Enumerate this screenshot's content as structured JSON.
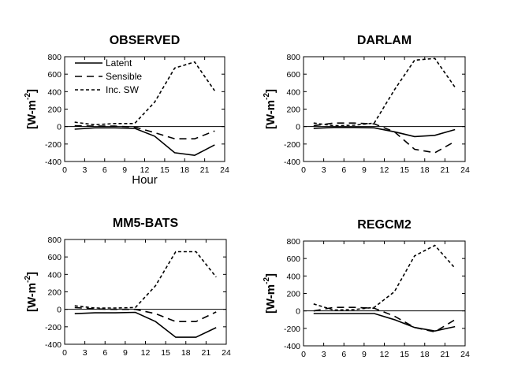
{
  "chart_data": [
    {
      "type": "line",
      "title": "OBSERVED",
      "xlabel": "Hour",
      "ylabel": "[W-m",
      "ylabel_exp": "-2",
      "ylabel_close": "]",
      "xlim": [
        0,
        24
      ],
      "ylim": [
        -400,
        800
      ],
      "x_ticks": [
        "0",
        "3",
        "6",
        "9",
        "12",
        "15",
        "18",
        "21",
        "24"
      ],
      "y_ticks": [
        "800",
        "600",
        "400",
        "200",
        "0",
        "-200",
        "-400"
      ],
      "zero_line": true,
      "legend_position": "top-left",
      "series": [
        {
          "name": "Latent",
          "style": "solid",
          "x": [
            1.5,
            4.5,
            7.5,
            10.5,
            13.5,
            16.5,
            19.5,
            22.5
          ],
          "y": [
            -30,
            -15,
            -15,
            -20,
            -110,
            -300,
            -330,
            -210
          ]
        },
        {
          "name": "Sensible",
          "style": "long-dash",
          "x": [
            1.5,
            4.5,
            7.5,
            10.5,
            13.5,
            16.5,
            19.5,
            22.5
          ],
          "y": [
            10,
            5,
            5,
            -5,
            -70,
            -140,
            -140,
            -50
          ]
        },
        {
          "name": "Inc. SW",
          "style": "short-dash",
          "x": [
            1.5,
            4.5,
            7.5,
            10.5,
            13.5,
            16.5,
            19.5,
            22.5
          ],
          "y": [
            50,
            20,
            35,
            35,
            280,
            670,
            740,
            410
          ]
        }
      ]
    },
    {
      "type": "line",
      "title": "DARLAM",
      "xlabel": "",
      "ylabel": "[W-m",
      "ylabel_exp": "-2",
      "ylabel_close": "]",
      "xlim": [
        0,
        24
      ],
      "ylim": [
        -400,
        800
      ],
      "x_ticks": [
        "0",
        "3",
        "6",
        "9",
        "12",
        "15",
        "18",
        "21",
        "24"
      ],
      "y_ticks": [
        "800",
        "600",
        "400",
        "200",
        "0",
        "-200",
        "-400"
      ],
      "zero_line": true,
      "series": [
        {
          "style": "solid",
          "x": [
            1.5,
            4.5,
            7.5,
            10.5,
            13.5,
            16.5,
            19.5,
            22.5
          ],
          "y": [
            -20,
            -10,
            -10,
            -15,
            -60,
            -115,
            -100,
            -35
          ]
        },
        {
          "style": "long-dash",
          "x": [
            1.5,
            4.5,
            7.5,
            10.5,
            13.5,
            16.5,
            19.5,
            22.5
          ],
          "y": [
            10,
            40,
            40,
            30,
            -60,
            -260,
            -300,
            -170
          ]
        },
        {
          "style": "short-dash",
          "x": [
            1.5,
            4.5,
            7.5,
            10.5,
            13.5,
            16.5,
            19.5,
            22.5
          ],
          "y": [
            40,
            10,
            15,
            40,
            420,
            760,
            780,
            450
          ]
        }
      ]
    },
    {
      "type": "line",
      "title": "MM5-BATS",
      "xlabel": "",
      "ylabel": "[W-m",
      "ylabel_exp": "-2",
      "ylabel_close": "]",
      "xlim": [
        0,
        24
      ],
      "ylim": [
        -400,
        800
      ],
      "x_ticks": [
        "0",
        "3",
        "6",
        "9",
        "12",
        "15",
        "18",
        "21",
        "24"
      ],
      "y_ticks": [
        "800",
        "600",
        "400",
        "200",
        "0",
        "-200",
        "-400"
      ],
      "zero_line": true,
      "series": [
        {
          "style": "solid",
          "x": [
            1.5,
            4.5,
            7.5,
            10.5,
            13.5,
            16.5,
            19.5,
            22.5
          ],
          "y": [
            -50,
            -40,
            -40,
            -35,
            -140,
            -320,
            -320,
            -210
          ]
        },
        {
          "style": "long-dash",
          "x": [
            1.5,
            4.5,
            7.5,
            10.5,
            13.5,
            16.5,
            19.5,
            22.5
          ],
          "y": [
            20,
            5,
            0,
            0,
            -50,
            -140,
            -140,
            -30
          ]
        },
        {
          "style": "short-dash",
          "x": [
            1.5,
            4.5,
            7.5,
            10.5,
            13.5,
            16.5,
            19.5,
            22.5
          ],
          "y": [
            40,
            15,
            15,
            20,
            270,
            660,
            660,
            370
          ]
        }
      ]
    },
    {
      "type": "line",
      "title": "REGCM2",
      "xlabel": "",
      "ylabel": "[W-m",
      "ylabel_exp": "-2",
      "ylabel_close": "]",
      "xlim": [
        0,
        24
      ],
      "ylim": [
        -400,
        800
      ],
      "x_ticks": [
        "0",
        "3",
        "6",
        "9",
        "12",
        "15",
        "18",
        "21",
        "24"
      ],
      "y_ticks": [
        "800",
        "600",
        "400",
        "200",
        "0",
        "-200",
        "-400"
      ],
      "zero_line": true,
      "series": [
        {
          "style": "solid",
          "x": [
            1.5,
            4.5,
            7.5,
            10.5,
            13.5,
            16.5,
            19.5,
            22.5
          ],
          "y": [
            -30,
            -30,
            -30,
            -30,
            -100,
            -190,
            -230,
            -180
          ]
        },
        {
          "style": "long-dash",
          "x": [
            1.5,
            4.5,
            7.5,
            10.5,
            13.5,
            16.5,
            19.5,
            22.5
          ],
          "y": [
            0,
            40,
            40,
            30,
            -60,
            -190,
            -240,
            -100
          ]
        },
        {
          "style": "short-dash",
          "x": [
            1.5,
            4.5,
            7.5,
            10.5,
            13.5,
            16.5,
            19.5,
            22.5
          ],
          "y": [
            80,
            10,
            15,
            40,
            220,
            630,
            750,
            490
          ]
        }
      ]
    }
  ]
}
